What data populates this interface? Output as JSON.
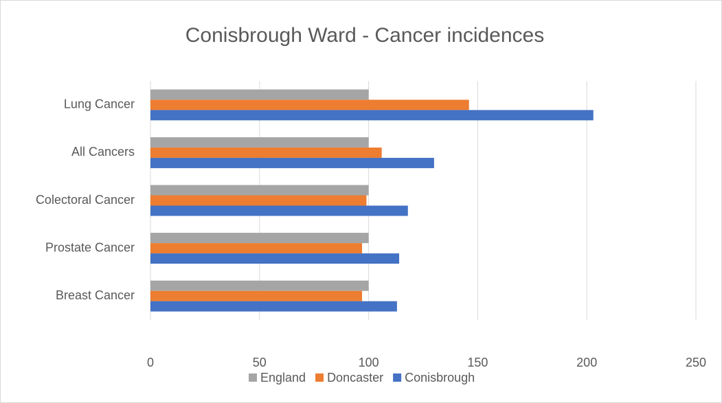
{
  "chart_data": {
    "type": "barh",
    "title": "Conisbrough Ward - Cancer incidences",
    "categories": [
      "Lung Cancer",
      "All Cancers",
      "Colectoral Cancer",
      "Prostate Cancer",
      "Breast Cancer"
    ],
    "series": [
      {
        "name": "England",
        "color": "#a5a5a5",
        "values": [
          100,
          100,
          100,
          100,
          100
        ]
      },
      {
        "name": "Doncaster",
        "color": "#ed7d31",
        "values": [
          146,
          106,
          99,
          97,
          97
        ]
      },
      {
        "name": "Conisbrough",
        "color": "#4472c4",
        "values": [
          203,
          130,
          118,
          114,
          113
        ]
      }
    ],
    "xlim": [
      0,
      250
    ],
    "xticks": [
      0,
      50,
      100,
      150,
      200,
      250
    ],
    "grid": true,
    "legend": "bottom"
  }
}
